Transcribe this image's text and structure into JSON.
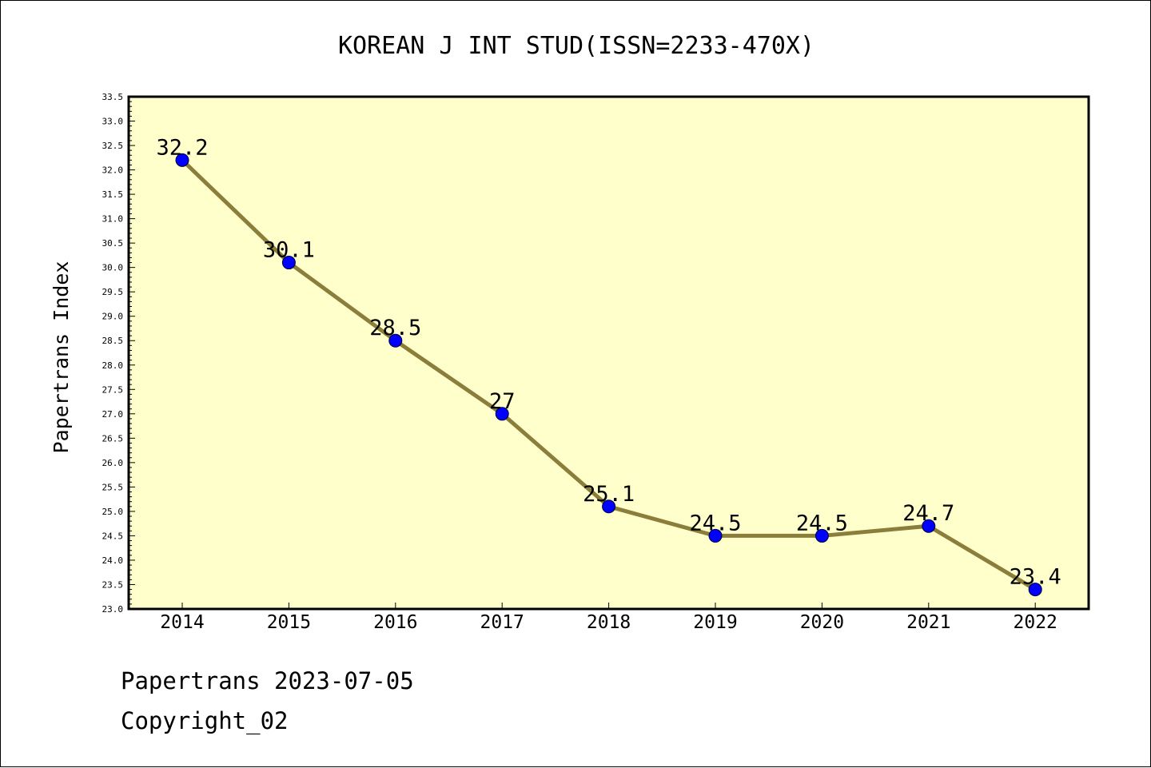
{
  "chart_data": {
    "type": "line",
    "title": "KOREAN J INT STUD(ISSN=2233-470X)",
    "xlabel": "",
    "ylabel": "Papertrans Index",
    "categories": [
      "2014",
      "2015",
      "2016",
      "2017",
      "2018",
      "2019",
      "2020",
      "2021",
      "2022"
    ],
    "series": [
      {
        "values": [
          32.2,
          30.1,
          28.5,
          27.0,
          25.1,
          24.5,
          24.5,
          24.7,
          23.4
        ],
        "labels": [
          "32.2",
          "30.1",
          "28.5",
          "27",
          "25.1",
          "24.5",
          "24.5",
          "24.7",
          "23.4"
        ]
      }
    ],
    "ylim": [
      23.0,
      33.5
    ],
    "yticks": [
      "23.0",
      "23.5",
      "24.0",
      "24.5",
      "25.0",
      "25.5",
      "26.0",
      "26.5",
      "27.0",
      "27.5",
      "28.0",
      "28.5",
      "29.0",
      "29.5",
      "30.0",
      "30.5",
      "31.0",
      "31.5",
      "32.0",
      "32.5",
      "33.0",
      "33.5"
    ],
    "grid": false,
    "colors": {
      "plot_background": "#ffffcc",
      "line": "#8b7d3a",
      "marker": "#0000ff"
    }
  },
  "footer": {
    "line1": "Papertrans 2023-07-05",
    "line2": "Copyright_02"
  }
}
